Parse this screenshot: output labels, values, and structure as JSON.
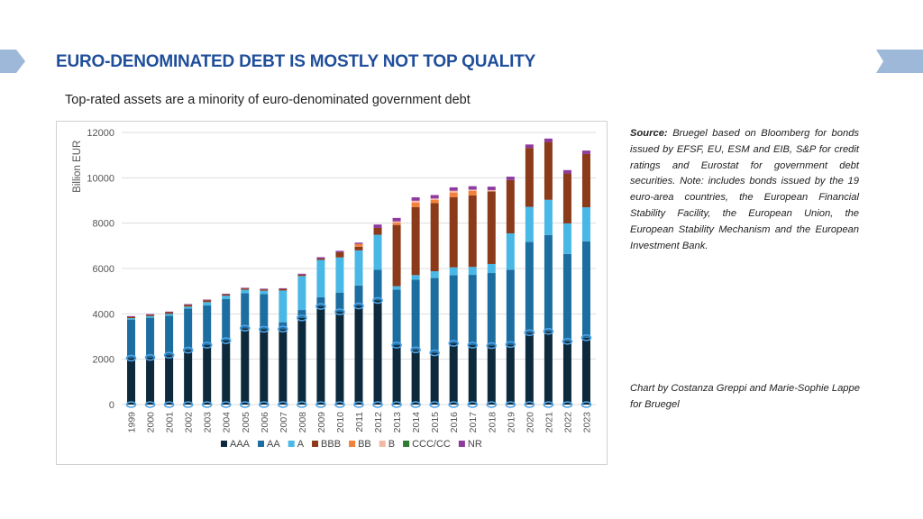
{
  "title": "EURO-DENOMINATED DEBT IS MOSTLY NOT TOP QUALITY",
  "subtitle": "Top-rated assets are a minority of euro-denominated government debt",
  "source_label": "Source:",
  "source_text": "Bruegel based on Bloomberg for bonds issued by EFSF, EU, ESM and EIB, S&P for credit ratings and Eurostat for government debt securities. Note: includes bonds issued by the 19 euro-area countries, the European Financial Stability Facility, the European Union, the European Stability Mechanism and the European Investment Bank.",
  "credit": "Chart by Costanza Greppi and Marie-Sophie Lappe for Bruegel",
  "colors": {
    "title": "#1f4e9a",
    "tab": "#9db8d9"
  },
  "chart_data": {
    "type": "bar",
    "stacked": true,
    "title": "",
    "xlabel": "",
    "ylabel": "Billion EUR",
    "ylim": [
      0,
      12000
    ],
    "yticks": [
      0,
      2000,
      4000,
      6000,
      8000,
      10000,
      12000
    ],
    "ytick_labels": [
      "0",
      "2000",
      "4000",
      "6000",
      "8000",
      "10000",
      "12000"
    ],
    "grid": true,
    "legend_position": "bottom",
    "categories": [
      "1999",
      "2000",
      "2001",
      "2002",
      "2003",
      "2004",
      "2005",
      "2006",
      "2007",
      "2008",
      "2009",
      "2010",
      "2011",
      "2012",
      "2013",
      "2014",
      "2015",
      "2016",
      "2017",
      "2018",
      "2019",
      "2020",
      "2021",
      "2022",
      "2023"
    ],
    "series": [
      {
        "name": "AAA",
        "color": "#0d2a3d",
        "values": [
          2050,
          2080,
          2180,
          2400,
          2620,
          2820,
          3370,
          3320,
          3330,
          3820,
          4330,
          4090,
          4350,
          4590,
          2620,
          2410,
          2280,
          2700,
          2620,
          2600,
          2650,
          3170,
          3230,
          2790,
          2950
        ]
      },
      {
        "name": "AA",
        "color": "#1d6ea0",
        "values": [
          1700,
          1750,
          1740,
          1830,
          1750,
          1830,
          1540,
          1550,
          300,
          350,
          400,
          850,
          900,
          1350,
          2450,
          3100,
          3300,
          3000,
          3100,
          3200,
          3300,
          4000,
          4250,
          3850,
          4250
        ]
      },
      {
        "name": "A",
        "color": "#4ab8e6",
        "values": [
          60,
          70,
          80,
          90,
          150,
          150,
          150,
          150,
          1400,
          1500,
          1650,
          1550,
          1550,
          1550,
          150,
          200,
          300,
          350,
          350,
          400,
          1600,
          1550,
          1550,
          1350,
          1500
        ]
      },
      {
        "name": "BBB",
        "color": "#8b3a1a",
        "values": [
          60,
          60,
          70,
          80,
          80,
          60,
          60,
          60,
          70,
          60,
          60,
          230,
          160,
          300,
          2700,
          3000,
          3000,
          3100,
          3150,
          3200,
          2350,
          2600,
          2550,
          2200,
          2350
        ]
      },
      {
        "name": "BB",
        "color": "#f2813a",
        "values": [
          0,
          0,
          0,
          0,
          0,
          0,
          0,
          0,
          0,
          0,
          0,
          0,
          120,
          0,
          100,
          200,
          150,
          200,
          200,
          0,
          0,
          0,
          0,
          0,
          0
        ]
      },
      {
        "name": "B",
        "color": "#f4b8a6",
        "values": [
          0,
          0,
          0,
          0,
          0,
          0,
          0,
          0,
          0,
          0,
          0,
          0,
          0,
          0,
          60,
          80,
          60,
          80,
          60,
          60,
          0,
          0,
          0,
          0,
          0
        ]
      },
      {
        "name": "CCC/CC",
        "color": "#2e7d32",
        "values": [
          0,
          0,
          0,
          0,
          0,
          0,
          0,
          0,
          0,
          0,
          0,
          0,
          0,
          0,
          0,
          0,
          0,
          0,
          0,
          0,
          0,
          0,
          0,
          0,
          0
        ]
      },
      {
        "name": "NR",
        "color": "#8e3a9e",
        "values": [
          30,
          30,
          30,
          30,
          30,
          30,
          30,
          30,
          30,
          40,
          60,
          60,
          60,
          150,
          150,
          150,
          150,
          150,
          150,
          150,
          150,
          150,
          150,
          150,
          150
        ]
      }
    ]
  }
}
